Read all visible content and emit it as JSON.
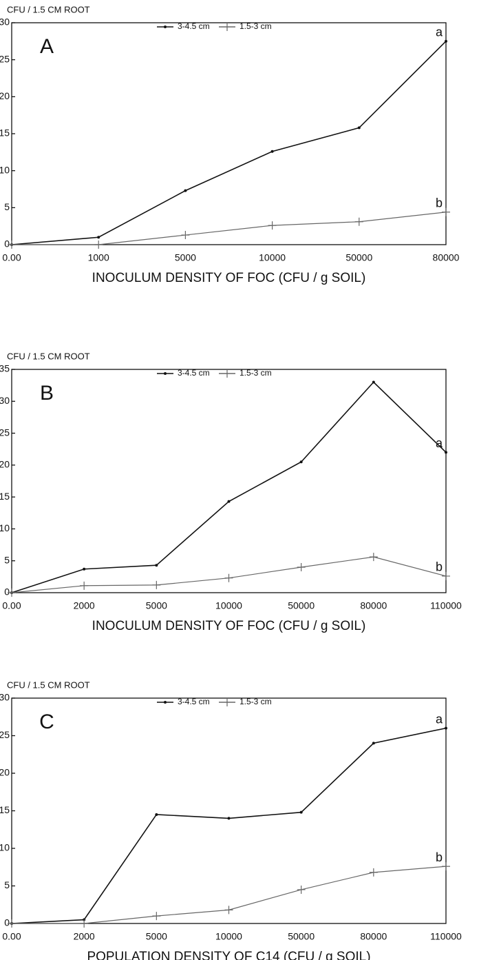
{
  "chart_data": [
    {
      "type": "line",
      "panel_label": "A",
      "y_label": "CFU / 1.5 CM ROOT",
      "x_label": "INOCULUM DENSITY OF FOC (CFU / g SOIL)",
      "categories": [
        "0.00",
        "1000",
        "5000",
        "10000",
        "50000",
        "80000"
      ],
      "series": [
        {
          "name": "3-4.5 cm",
          "color": "#111111",
          "marker": "dot",
          "values": [
            0,
            1,
            7.3,
            12.6,
            15.8,
            27.5
          ]
        },
        {
          "name": "1.5-3 cm",
          "color": "#666666",
          "marker": "plus",
          "values": [
            0,
            0,
            1.3,
            2.6,
            3.1,
            4.4
          ]
        }
      ],
      "annotations": [
        "a",
        "b"
      ],
      "ylim": [
        0,
        30
      ],
      "yticks": [
        0,
        5,
        10,
        15,
        20,
        25,
        30
      ],
      "grid": false
    },
    {
      "type": "line",
      "panel_label": "B",
      "y_label": "CFU / 1.5 CM ROOT",
      "x_label": "INOCULUM DENSITY OF FOC (CFU / g SOIL)",
      "categories": [
        "0.00",
        "2000",
        "5000",
        "10000",
        "50000",
        "80000",
        "110000"
      ],
      "series": [
        {
          "name": "3-4.5 cm",
          "color": "#111111",
          "marker": "dot",
          "values": [
            0,
            3.7,
            4.3,
            14.3,
            20.5,
            33,
            22
          ]
        },
        {
          "name": "1.5-3 cm",
          "color": "#666666",
          "marker": "plus",
          "values": [
            0,
            1.1,
            1.2,
            2.3,
            4,
            5.6,
            2.6
          ]
        }
      ],
      "annotations": [
        "a",
        "b"
      ],
      "ylim": [
        0,
        35
      ],
      "yticks": [
        0,
        5,
        10,
        15,
        20,
        25,
        30,
        35
      ],
      "grid": false
    },
    {
      "type": "line",
      "panel_label": "C",
      "y_label": "CFU / 1.5 CM ROOT",
      "x_label": "POPULATION DENSITY OF C14 (CFU / g SOIL)",
      "categories": [
        "0.00",
        "2000",
        "5000",
        "10000",
        "50000",
        "80000",
        "110000"
      ],
      "series": [
        {
          "name": "3-4.5 cm",
          "color": "#111111",
          "marker": "dot",
          "values": [
            0,
            0.5,
            14.5,
            14,
            14.8,
            24,
            26
          ]
        },
        {
          "name": "1.5-3 cm",
          "color": "#666666",
          "marker": "plus",
          "values": [
            0,
            0,
            1,
            1.8,
            4.5,
            6.8,
            7.6
          ]
        }
      ],
      "annotations": [
        "a",
        "b"
      ],
      "ylim": [
        0,
        30
      ],
      "yticks": [
        0,
        5,
        10,
        15,
        20,
        25,
        30
      ],
      "grid": false
    }
  ]
}
